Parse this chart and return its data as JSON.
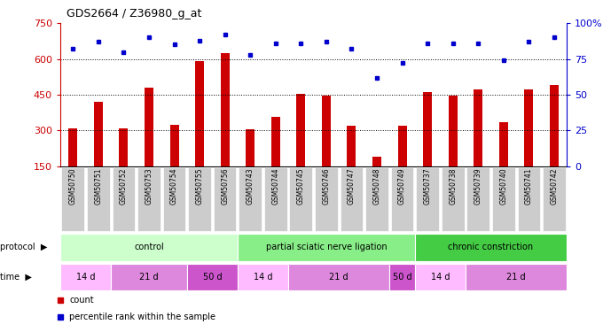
{
  "title": "GDS2664 / Z36980_g_at",
  "samples": [
    "GSM50750",
    "GSM50751",
    "GSM50752",
    "GSM50753",
    "GSM50754",
    "GSM50755",
    "GSM50756",
    "GSM50743",
    "GSM50744",
    "GSM50745",
    "GSM50746",
    "GSM50747",
    "GSM50748",
    "GSM50749",
    "GSM50737",
    "GSM50738",
    "GSM50739",
    "GSM50740",
    "GSM50741",
    "GSM50742"
  ],
  "counts": [
    310,
    420,
    307,
    480,
    322,
    590,
    625,
    304,
    355,
    455,
    445,
    318,
    190,
    318,
    460,
    445,
    472,
    335,
    470,
    490
  ],
  "percentiles": [
    82,
    87,
    80,
    90,
    85,
    88,
    92,
    78,
    86,
    86,
    87,
    82,
    62,
    72,
    86,
    86,
    86,
    74,
    87,
    90
  ],
  "bar_color": "#cc0000",
  "dot_color": "#0000cc",
  "ylim_left": [
    150,
    750
  ],
  "ylim_right": [
    0,
    100
  ],
  "yticks_left": [
    150,
    300,
    450,
    600,
    750
  ],
  "yticks_right": [
    0,
    25,
    50,
    75,
    100
  ],
  "ytick_labels_right": [
    "0",
    "25",
    "50",
    "75",
    "100%"
  ],
  "hlines": [
    300,
    450,
    600
  ],
  "proto_groups": [
    {
      "label": "control",
      "start": 0,
      "end": 6,
      "color": "#ccffcc"
    },
    {
      "label": "partial sciatic nerve ligation",
      "start": 7,
      "end": 13,
      "color": "#88ee88"
    },
    {
      "label": "chronic constriction",
      "start": 14,
      "end": 19,
      "color": "#44cc44"
    }
  ],
  "time_groups": [
    {
      "label": "14 d",
      "start": 0,
      "end": 1,
      "color": "#ffbbff"
    },
    {
      "label": "21 d",
      "start": 2,
      "end": 4,
      "color": "#dd88dd"
    },
    {
      "label": "50 d",
      "start": 5,
      "end": 6,
      "color": "#cc55cc"
    },
    {
      "label": "14 d",
      "start": 7,
      "end": 8,
      "color": "#ffbbff"
    },
    {
      "label": "21 d",
      "start": 9,
      "end": 12,
      "color": "#dd88dd"
    },
    {
      "label": "50 d",
      "start": 13,
      "end": 13,
      "color": "#cc55cc"
    },
    {
      "label": "14 d",
      "start": 14,
      "end": 15,
      "color": "#ffbbff"
    },
    {
      "label": "21 d",
      "start": 16,
      "end": 19,
      "color": "#dd88dd"
    }
  ],
  "axis_color_left": "#cc0000",
  "axis_color_right": "#0000cc",
  "sample_box_color": "#cccccc",
  "legend_count_color": "#cc0000",
  "legend_dot_color": "#0000cc"
}
